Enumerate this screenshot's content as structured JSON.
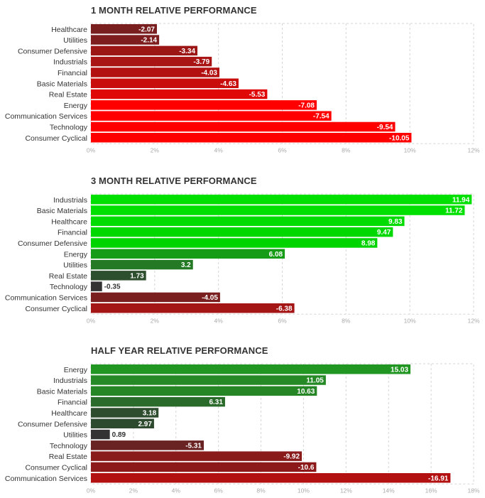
{
  "charts": [
    {
      "title": "1 MONTH RELATIVE PERFORMANCE",
      "type": "bar",
      "orientation": "horizontal",
      "categories": [
        "Healthcare",
        "Utilities",
        "Consumer Defensive",
        "Industrials",
        "Financial",
        "Basic Materials",
        "Real Estate",
        "Energy",
        "Communication Services",
        "Technology",
        "Consumer Cyclical"
      ],
      "values": [
        -2.07,
        -2.14,
        -3.34,
        -3.79,
        -4.03,
        -4.63,
        -5.53,
        -7.08,
        -7.54,
        -9.54,
        -10.05
      ],
      "value_labels": [
        "-2.07",
        "-2.14",
        "-3.34",
        "-3.79",
        "-4.03",
        "-4.63",
        "-5.53",
        "-7.08",
        "-7.54",
        "-9.54",
        "-10.05"
      ],
      "colors": [
        "#7a1f1f",
        "#7d1d1d",
        "#9c1616",
        "#a91414",
        "#b31111",
        "#c90d0d",
        "#e00707",
        "#ff0000",
        "#ff0000",
        "#ff0000",
        "#ff0000"
      ],
      "xlim": [
        0,
        12
      ],
      "xticks": [
        "0%",
        "2%",
        "4%",
        "6%",
        "8%",
        "10%",
        "12%"
      ],
      "xtick_values": [
        0,
        2,
        4,
        6,
        8,
        10,
        12
      ]
    },
    {
      "title": "3 MONTH RELATIVE PERFORMANCE",
      "type": "bar",
      "orientation": "horizontal",
      "categories": [
        "Industrials",
        "Basic Materials",
        "Healthcare",
        "Financial",
        "Consumer Defensive",
        "Energy",
        "Utilities",
        "Real Estate",
        "Technology",
        "Communication Services",
        "Consumer Cyclical"
      ],
      "values": [
        11.94,
        11.72,
        9.83,
        9.47,
        8.98,
        6.08,
        3.2,
        1.73,
        -0.35,
        -4.05,
        -6.38
      ],
      "value_labels": [
        "11.94",
        "11.72",
        "9.83",
        "9.47",
        "8.98",
        "6.08",
        "3.2",
        "1.73",
        "-0.35",
        "-4.05",
        "-6.38"
      ],
      "colors": [
        "#00e000",
        "#00e000",
        "#00db00",
        "#00d800",
        "#00d400",
        "#179c17",
        "#247a24",
        "#2e4f2e",
        "#333333",
        "#7a1f1f",
        "#a41515"
      ],
      "xlim": [
        0,
        12
      ],
      "xticks": [
        "0%",
        "2%",
        "4%",
        "6%",
        "8%",
        "10%",
        "12%"
      ],
      "xtick_values": [
        0,
        2,
        4,
        6,
        8,
        10,
        12
      ]
    },
    {
      "title": "HALF YEAR RELATIVE PERFORMANCE",
      "type": "bar",
      "orientation": "horizontal",
      "categories": [
        "Energy",
        "Industrials",
        "Basic Materials",
        "Financial",
        "Healthcare",
        "Consumer Defensive",
        "Utilities",
        "Technology",
        "Real Estate",
        "Consumer Cyclical",
        "Communication Services"
      ],
      "values": [
        15.03,
        11.05,
        10.63,
        6.31,
        3.18,
        2.97,
        0.89,
        -5.31,
        -9.92,
        -10.6,
        -16.91
      ],
      "value_labels": [
        "15.03",
        "11.05",
        "10.63",
        "6.31",
        "3.18",
        "2.97",
        "0.89",
        "-5.31",
        "-9.92",
        "-10.6",
        "-16.91"
      ],
      "colors": [
        "#229622",
        "#258a25",
        "#268626",
        "#2a6a2a",
        "#2e4c2e",
        "#2e4a2e",
        "#333333",
        "#6a2323",
        "#891b1b",
        "#8d1a1a",
        "#b31111"
      ],
      "xlim": [
        0,
        18
      ],
      "xticks": [
        "0%",
        "2%",
        "4%",
        "6%",
        "8%",
        "10%",
        "12%",
        "14%",
        "16%",
        "18%"
      ],
      "xtick_values": [
        0,
        2,
        4,
        6,
        8,
        10,
        12,
        14,
        16,
        18
      ]
    }
  ]
}
